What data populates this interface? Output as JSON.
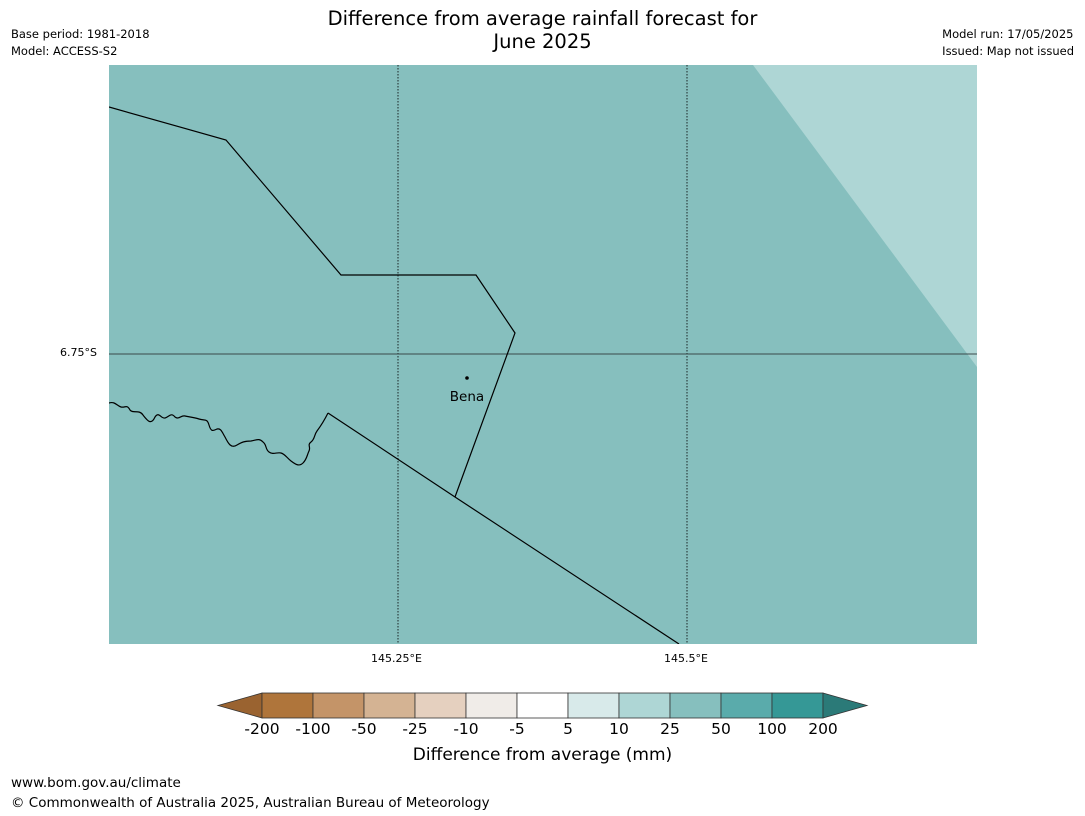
{
  "header": {
    "title_line1": "Difference from average rainfall forecast for",
    "title_line2": "June 2025",
    "base_period": "Base period: 1981-2018",
    "model": "Model: ACCESS-S2",
    "model_run": "Model run: 17/05/2025",
    "issued": "Issued: Map not issued"
  },
  "map": {
    "colors": {
      "main_fill": "#86bfbe",
      "light_fill": "#aed6d5"
    },
    "gridlines": {
      "lat_label": "6.75°S",
      "lon_labels": [
        "145.25°E",
        "145.5°E"
      ]
    },
    "place": {
      "name": "Bena"
    }
  },
  "colorbar": {
    "title": "Difference from average (mm)",
    "labels": [
      "-200",
      "-100",
      "-50",
      "-25",
      "-10",
      "-5",
      "5",
      "10",
      "25",
      "50",
      "100",
      "200"
    ],
    "colors": [
      "#9a6330",
      "#af753b",
      "#c49468",
      "#d4b393",
      "#e5d0bf",
      "#f0ece8",
      "#ffffff",
      "#d8eaea",
      "#aed6d5",
      "#86bfbe",
      "#5aabab",
      "#359896",
      "#2b7a78"
    ]
  },
  "footer": {
    "url": "www.bom.gov.au/climate",
    "copyright": "© Commonwealth of Australia 2025, Australian Bureau of Meteorology"
  }
}
